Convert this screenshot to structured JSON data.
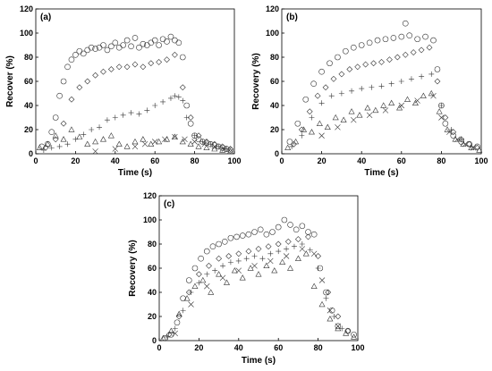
{
  "chart_data": [
    {
      "type": "scatter",
      "panel_label": "(a)",
      "xlabel": "Time (s)",
      "ylabel": "Recover (%)",
      "xlim": [
        0,
        100
      ],
      "ylim": [
        0,
        120
      ],
      "xticks": [
        "0",
        "20",
        "40",
        "60",
        "80",
        "100"
      ],
      "yticks": [
        "0",
        "20",
        "40",
        "60",
        "80",
        "100",
        "120"
      ],
      "grid": false,
      "series": [
        {
          "marker": "circle",
          "x": [
            3,
            6,
            8,
            10,
            12,
            14,
            16,
            18,
            20,
            22,
            24,
            26,
            28,
            30,
            32,
            34,
            36,
            38,
            40,
            42,
            44,
            46,
            48,
            50,
            52,
            54,
            56,
            58,
            60,
            62,
            64,
            66,
            68,
            70,
            72,
            74,
            76,
            78,
            80,
            82,
            84,
            86,
            88,
            90,
            92,
            94,
            96,
            98
          ],
          "y": [
            6,
            8,
            18,
            30,
            48,
            60,
            72,
            78,
            82,
            85,
            83,
            86,
            88,
            87,
            88,
            90,
            86,
            89,
            92,
            88,
            90,
            94,
            89,
            96,
            88,
            91,
            90,
            92,
            94,
            90,
            95,
            93,
            97,
            94,
            92,
            80,
            40,
            25,
            15,
            12,
            10,
            9,
            8,
            7,
            6,
            5,
            4,
            3
          ]
        },
        {
          "marker": "diamond",
          "x": [
            5,
            10,
            14,
            18,
            22,
            26,
            30,
            34,
            38,
            42,
            46,
            50,
            54,
            58,
            62,
            66,
            70,
            74,
            78,
            82,
            86,
            90,
            94,
            98
          ],
          "y": [
            5,
            12,
            25,
            45,
            55,
            60,
            65,
            68,
            70,
            72,
            72,
            74,
            72,
            75,
            76,
            78,
            82,
            55,
            30,
            15,
            10,
            8,
            6,
            4
          ]
        },
        {
          "marker": "plus",
          "x": [
            4,
            8,
            12,
            16,
            20,
            24,
            28,
            32,
            36,
            40,
            44,
            48,
            52,
            56,
            60,
            64,
            68,
            70,
            72,
            74,
            76,
            80,
            84,
            88,
            92,
            96
          ],
          "y": [
            3,
            5,
            6,
            8,
            12,
            16,
            20,
            22,
            28,
            30,
            32,
            34,
            33,
            36,
            40,
            43,
            46,
            48,
            47,
            44,
            30,
            15,
            10,
            8,
            6,
            4
          ]
        },
        {
          "marker": "triangle",
          "x": [
            2,
            6,
            10,
            14,
            18,
            22,
            26,
            30,
            34,
            38,
            42,
            46,
            50,
            54,
            58,
            62,
            66,
            70,
            74,
            78,
            82,
            86,
            90,
            94,
            98
          ],
          "y": [
            5,
            8,
            15,
            12,
            20,
            14,
            8,
            10,
            12,
            15,
            8,
            6,
            10,
            12,
            8,
            10,
            12,
            14,
            10,
            8,
            6,
            5,
            4,
            3,
            2
          ]
        },
        {
          "marker": "cross",
          "x": [
            30,
            40,
            50,
            55,
            60,
            65,
            70,
            75,
            80,
            85,
            90,
            95
          ],
          "y": [
            2,
            4,
            6,
            8,
            10,
            12,
            14,
            12,
            10,
            8,
            6,
            4
          ]
        }
      ]
    },
    {
      "type": "scatter",
      "panel_label": "(b)",
      "xlabel": "Time (s)",
      "ylabel": "Recovery (%)",
      "xlim": [
        0,
        100
      ],
      "ylim": [
        0,
        120
      ],
      "xticks": [
        "0",
        "20",
        "40",
        "60",
        "80",
        "100"
      ],
      "yticks": [
        "0",
        "20",
        "40",
        "60",
        "80",
        "100",
        "120"
      ],
      "grid": false,
      "series": [
        {
          "marker": "circle",
          "x": [
            4,
            8,
            12,
            16,
            20,
            24,
            28,
            32,
            36,
            40,
            44,
            48,
            52,
            56,
            60,
            62,
            64,
            68,
            72,
            76,
            78,
            80,
            82,
            86,
            90,
            94,
            98
          ],
          "y": [
            10,
            25,
            45,
            58,
            68,
            75,
            80,
            85,
            88,
            90,
            92,
            94,
            95,
            96,
            97,
            108,
            98,
            95,
            97,
            94,
            70,
            40,
            25,
            15,
            10,
            8,
            6
          ]
        },
        {
          "marker": "diamond",
          "x": [
            6,
            10,
            14,
            18,
            22,
            26,
            30,
            34,
            38,
            42,
            46,
            50,
            54,
            58,
            62,
            66,
            70,
            74,
            78,
            82,
            86,
            90,
            94,
            98
          ],
          "y": [
            8,
            20,
            35,
            48,
            55,
            62,
            66,
            70,
            72,
            74,
            75,
            76,
            78,
            80,
            82,
            84,
            86,
            88,
            60,
            30,
            18,
            12,
            8,
            5
          ]
        },
        {
          "marker": "plus",
          "x": [
            5,
            10,
            15,
            20,
            25,
            30,
            35,
            40,
            45,
            50,
            55,
            60,
            65,
            70,
            75,
            80,
            85,
            90,
            95
          ],
          "y": [
            6,
            15,
            30,
            42,
            48,
            50,
            52,
            54,
            55,
            56,
            58,
            60,
            62,
            64,
            66,
            40,
            20,
            12,
            6
          ]
        },
        {
          "marker": "triangle",
          "x": [
            3,
            7,
            11,
            15,
            19,
            23,
            27,
            31,
            35,
            39,
            43,
            47,
            51,
            55,
            59,
            63,
            67,
            71,
            75,
            79,
            83,
            87,
            91,
            95,
            99
          ],
          "y": [
            5,
            10,
            20,
            18,
            25,
            22,
            30,
            28,
            35,
            32,
            38,
            36,
            40,
            42,
            38,
            45,
            42,
            48,
            50,
            35,
            20,
            12,
            8,
            5,
            3
          ]
        },
        {
          "marker": "cross",
          "x": [
            20,
            28,
            36,
            44,
            52,
            60,
            68,
            76,
            80,
            84,
            88,
            92,
            96
          ],
          "y": [
            15,
            22,
            28,
            32,
            36,
            40,
            44,
            48,
            30,
            18,
            12,
            8,
            5
          ]
        }
      ]
    },
    {
      "type": "scatter",
      "panel_label": "(c)",
      "xlabel": "Time (s)",
      "ylabel": "Recovery (%)",
      "xlim": [
        0,
        100
      ],
      "ylim": [
        0,
        120
      ],
      "xticks": [
        "0",
        "20",
        "40",
        "60",
        "80",
        "100"
      ],
      "yticks": [
        "0",
        "20",
        "40",
        "60",
        "80",
        "100",
        "120"
      ],
      "grid": false,
      "series": [
        {
          "marker": "circle",
          "x": [
            3,
            6,
            9,
            12,
            15,
            18,
            21,
            24,
            27,
            30,
            33,
            36,
            39,
            42,
            45,
            48,
            51,
            54,
            57,
            60,
            63,
            66,
            69,
            72,
            75,
            78,
            81,
            84,
            87,
            90,
            95,
            98
          ],
          "y": [
            2,
            5,
            15,
            35,
            50,
            60,
            68,
            74,
            78,
            80,
            82,
            85,
            86,
            87,
            88,
            90,
            92,
            88,
            90,
            94,
            100,
            96,
            92,
            95,
            90,
            88,
            60,
            40,
            25,
            12,
            8,
            5
          ]
        },
        {
          "marker": "diamond",
          "x": [
            5,
            10,
            15,
            20,
            25,
            30,
            35,
            40,
            45,
            50,
            55,
            60,
            65,
            70,
            75,
            80,
            85,
            90,
            95
          ],
          "y": [
            5,
            20,
            40,
            55,
            62,
            68,
            70,
            72,
            74,
            76,
            78,
            80,
            82,
            84,
            86,
            70,
            40,
            20,
            8
          ]
        },
        {
          "marker": "plus",
          "x": [
            4,
            8,
            12,
            16,
            20,
            24,
            28,
            32,
            36,
            40,
            44,
            48,
            52,
            56,
            60,
            64,
            68,
            72,
            76,
            80,
            84,
            88,
            92
          ],
          "y": [
            3,
            10,
            25,
            40,
            48,
            55,
            58,
            62,
            65,
            66,
            68,
            70,
            68,
            72,
            74,
            76,
            78,
            80,
            75,
            60,
            35,
            20,
            10
          ]
        },
        {
          "marker": "triangle",
          "x": [
            2,
            6,
            10,
            14,
            18,
            22,
            26,
            30,
            34,
            38,
            42,
            46,
            50,
            54,
            58,
            62,
            66,
            70,
            74,
            78,
            82,
            86,
            90,
            94,
            98
          ],
          "y": [
            2,
            8,
            22,
            35,
            45,
            50,
            40,
            55,
            48,
            58,
            52,
            60,
            55,
            62,
            58,
            65,
            60,
            68,
            72,
            45,
            30,
            18,
            10,
            6,
            3
          ]
        },
        {
          "marker": "cross",
          "x": [
            8,
            16,
            24,
            32,
            40,
            48,
            56,
            64,
            72,
            78,
            82,
            86,
            90
          ],
          "y": [
            6,
            30,
            45,
            52,
            58,
            62,
            66,
            70,
            76,
            72,
            50,
            25,
            12
          ]
        }
      ]
    }
  ]
}
